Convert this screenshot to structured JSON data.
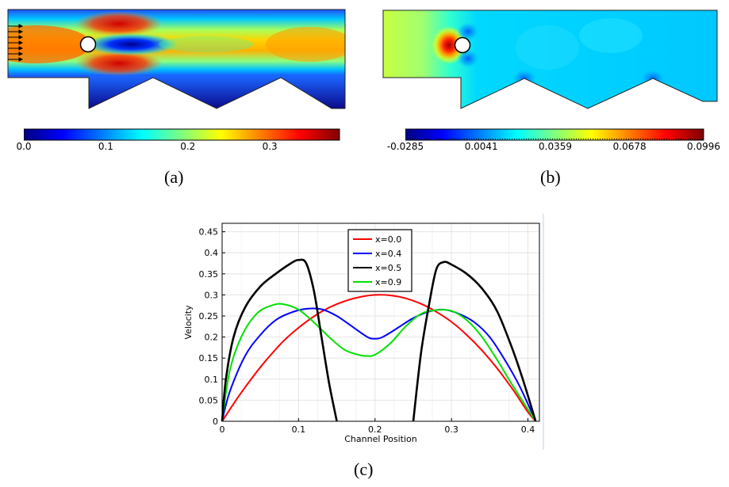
{
  "panels": {
    "a": {
      "label": "(a)",
      "colorbar_ticks": [
        "0.0",
        "0.1",
        "0.2",
        "0.3"
      ],
      "colorbar_values": [
        0.0,
        0.1,
        0.2,
        0.3
      ],
      "colorbar_range": [
        0.0,
        0.385
      ]
    },
    "b": {
      "label": "(b)",
      "colorbar_ticks": [
        "-0.0285",
        "0.0041",
        "0.0359",
        "0.0678",
        "0.0996"
      ],
      "colorbar_values": [
        -0.0285,
        0.0041,
        0.0359,
        0.0678,
        0.0996
      ],
      "colorbar_range": [
        -0.0285,
        0.0996
      ]
    },
    "c": {
      "label": "(c)"
    }
  },
  "colors": {
    "jet": [
      "#00007f",
      "#0000ff",
      "#007fff",
      "#00ffff",
      "#7fff7f",
      "#ffff00",
      "#ff7f00",
      "#ff0000",
      "#7f0000"
    ],
    "x00": "#ff0000",
    "x04": "#0000ff",
    "x05": "#000000",
    "x09": "#00e000"
  },
  "chart_data": {
    "type": "line",
    "title": "",
    "xlabel": "Channel Position",
    "ylabel": "Velocity",
    "xlim": [
      0,
      0.415
    ],
    "ylim": [
      0,
      0.47
    ],
    "xticks": [
      0,
      0.1,
      0.2,
      0.3,
      0.4
    ],
    "xtick_labels": [
      "0",
      "0.1",
      "0.2",
      "0.3",
      "0.4"
    ],
    "yticks": [
      0,
      0.05,
      0.1,
      0.15,
      0.2,
      0.25,
      0.3,
      0.35,
      0.4,
      0.45
    ],
    "ytick_labels": [
      "0",
      "0.05",
      "0.1",
      "0.15",
      "0.2",
      "0.25",
      "0.3",
      "0.35",
      "0.4",
      "0.45"
    ],
    "grid": true,
    "legend_position": "top-center",
    "series": [
      {
        "name": "x=0.0",
        "color_key": "x00",
        "x": [
          0,
          0.02,
          0.04,
          0.06,
          0.08,
          0.1,
          0.12,
          0.14,
          0.16,
          0.18,
          0.2,
          0.22,
          0.24,
          0.26,
          0.28,
          0.3,
          0.32,
          0.34,
          0.36,
          0.38,
          0.4,
          0.41
        ],
        "y": [
          0,
          0.055,
          0.105,
          0.15,
          0.19,
          0.222,
          0.249,
          0.27,
          0.285,
          0.295,
          0.3,
          0.299,
          0.292,
          0.279,
          0.26,
          0.236,
          0.205,
          0.168,
          0.125,
          0.076,
          0.022,
          0
        ]
      },
      {
        "name": "x=0.4",
        "color_key": "x04",
        "x": [
          0,
          0.01,
          0.03,
          0.05,
          0.07,
          0.09,
          0.11,
          0.13,
          0.15,
          0.17,
          0.19,
          0.2,
          0.21,
          0.23,
          0.25,
          0.27,
          0.29,
          0.31,
          0.33,
          0.35,
          0.37,
          0.39,
          0.41
        ],
        "y": [
          0,
          0.07,
          0.155,
          0.205,
          0.24,
          0.258,
          0.267,
          0.266,
          0.25,
          0.225,
          0.2,
          0.196,
          0.2,
          0.222,
          0.245,
          0.26,
          0.265,
          0.255,
          0.235,
          0.2,
          0.145,
          0.08,
          0
        ]
      },
      {
        "name": "x=0.5",
        "color_key": "x05",
        "segments": [
          {
            "x": [
              0,
              0.005,
              0.015,
              0.03,
              0.05,
              0.07,
              0.09,
              0.1,
              0.11,
              0.12,
              0.13,
              0.14,
              0.15
            ],
            "y": [
              0,
              0.1,
              0.2,
              0.27,
              0.32,
              0.35,
              0.375,
              0.383,
              0.375,
              0.31,
              0.2,
              0.09,
              0
            ]
          },
          {
            "x": [
              0.25,
              0.26,
              0.27,
              0.28,
              0.29,
              0.3,
              0.32,
              0.34,
              0.36,
              0.38,
              0.395,
              0.41
            ],
            "y": [
              0,
              0.16,
              0.27,
              0.36,
              0.378,
              0.372,
              0.35,
              0.315,
              0.26,
              0.17,
              0.09,
              0
            ]
          }
        ]
      },
      {
        "name": "x=0.9",
        "color_key": "x09",
        "x": [
          0,
          0.01,
          0.025,
          0.045,
          0.065,
          0.08,
          0.1,
          0.12,
          0.14,
          0.16,
          0.18,
          0.19,
          0.2,
          0.22,
          0.24,
          0.26,
          0.28,
          0.3,
          0.32,
          0.34,
          0.36,
          0.38,
          0.41
        ],
        "y": [
          0,
          0.12,
          0.2,
          0.255,
          0.275,
          0.278,
          0.265,
          0.235,
          0.2,
          0.17,
          0.157,
          0.155,
          0.158,
          0.185,
          0.225,
          0.255,
          0.264,
          0.262,
          0.24,
          0.2,
          0.145,
          0.085,
          0
        ]
      }
    ]
  }
}
